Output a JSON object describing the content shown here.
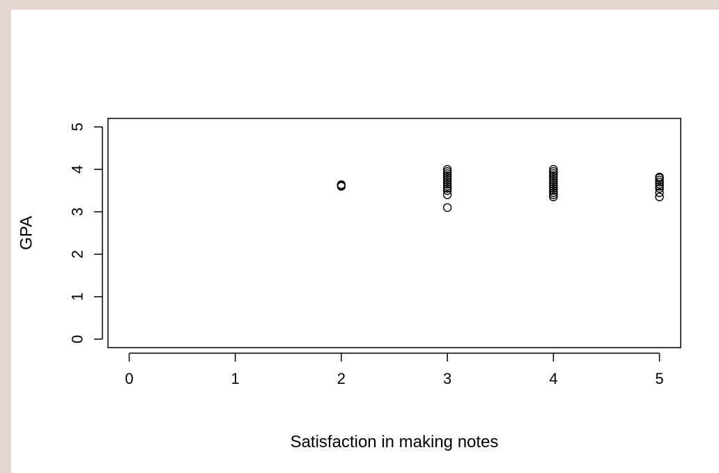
{
  "colors": {
    "background": "#e6d8d0",
    "panel": "#ffffff",
    "ink": "#000000"
  },
  "chart_data": {
    "type": "scatter",
    "title": "",
    "xlabel": "Satisfaction in making notes",
    "ylabel": "GPA",
    "xlim": [
      -0.2,
      5.2
    ],
    "ylim": [
      -0.2,
      5.2
    ],
    "xticks": [
      0,
      1,
      2,
      3,
      4,
      5
    ],
    "yticks": [
      0,
      1,
      2,
      3,
      4,
      5
    ],
    "xtick_labels": [
      "0",
      "1",
      "2",
      "3",
      "4",
      "5"
    ],
    "ytick_labels": [
      "0",
      "1",
      "2",
      "3",
      "4",
      "5"
    ],
    "grid": false,
    "legend": "none",
    "marker": "open-circle",
    "points": [
      {
        "x": 2,
        "y": 3.62
      },
      {
        "x": 2,
        "y": 3.64
      },
      {
        "x": 2,
        "y": 3.6
      },
      {
        "x": 3,
        "y": 3.1
      },
      {
        "x": 3,
        "y": 3.4
      },
      {
        "x": 3,
        "y": 3.5
      },
      {
        "x": 3,
        "y": 3.55
      },
      {
        "x": 3,
        "y": 3.6
      },
      {
        "x": 3,
        "y": 3.65
      },
      {
        "x": 3,
        "y": 3.7
      },
      {
        "x": 3,
        "y": 3.75
      },
      {
        "x": 3,
        "y": 3.8
      },
      {
        "x": 3,
        "y": 3.85
      },
      {
        "x": 3,
        "y": 3.9
      },
      {
        "x": 3,
        "y": 3.95
      },
      {
        "x": 3,
        "y": 4.0
      },
      {
        "x": 4,
        "y": 3.35
      },
      {
        "x": 4,
        "y": 3.4
      },
      {
        "x": 4,
        "y": 3.45
      },
      {
        "x": 4,
        "y": 3.5
      },
      {
        "x": 4,
        "y": 3.55
      },
      {
        "x": 4,
        "y": 3.6
      },
      {
        "x": 4,
        "y": 3.65
      },
      {
        "x": 4,
        "y": 3.7
      },
      {
        "x": 4,
        "y": 3.75
      },
      {
        "x": 4,
        "y": 3.8
      },
      {
        "x": 4,
        "y": 3.85
      },
      {
        "x": 4,
        "y": 3.9
      },
      {
        "x": 4,
        "y": 3.95
      },
      {
        "x": 4,
        "y": 4.0
      },
      {
        "x": 5,
        "y": 3.35
      },
      {
        "x": 5,
        "y": 3.45
      },
      {
        "x": 5,
        "y": 3.55
      },
      {
        "x": 5,
        "y": 3.6
      },
      {
        "x": 5,
        "y": 3.65
      },
      {
        "x": 5,
        "y": 3.7
      },
      {
        "x": 5,
        "y": 3.75
      },
      {
        "x": 5,
        "y": 3.8
      },
      {
        "x": 5,
        "y": 3.82
      }
    ]
  }
}
